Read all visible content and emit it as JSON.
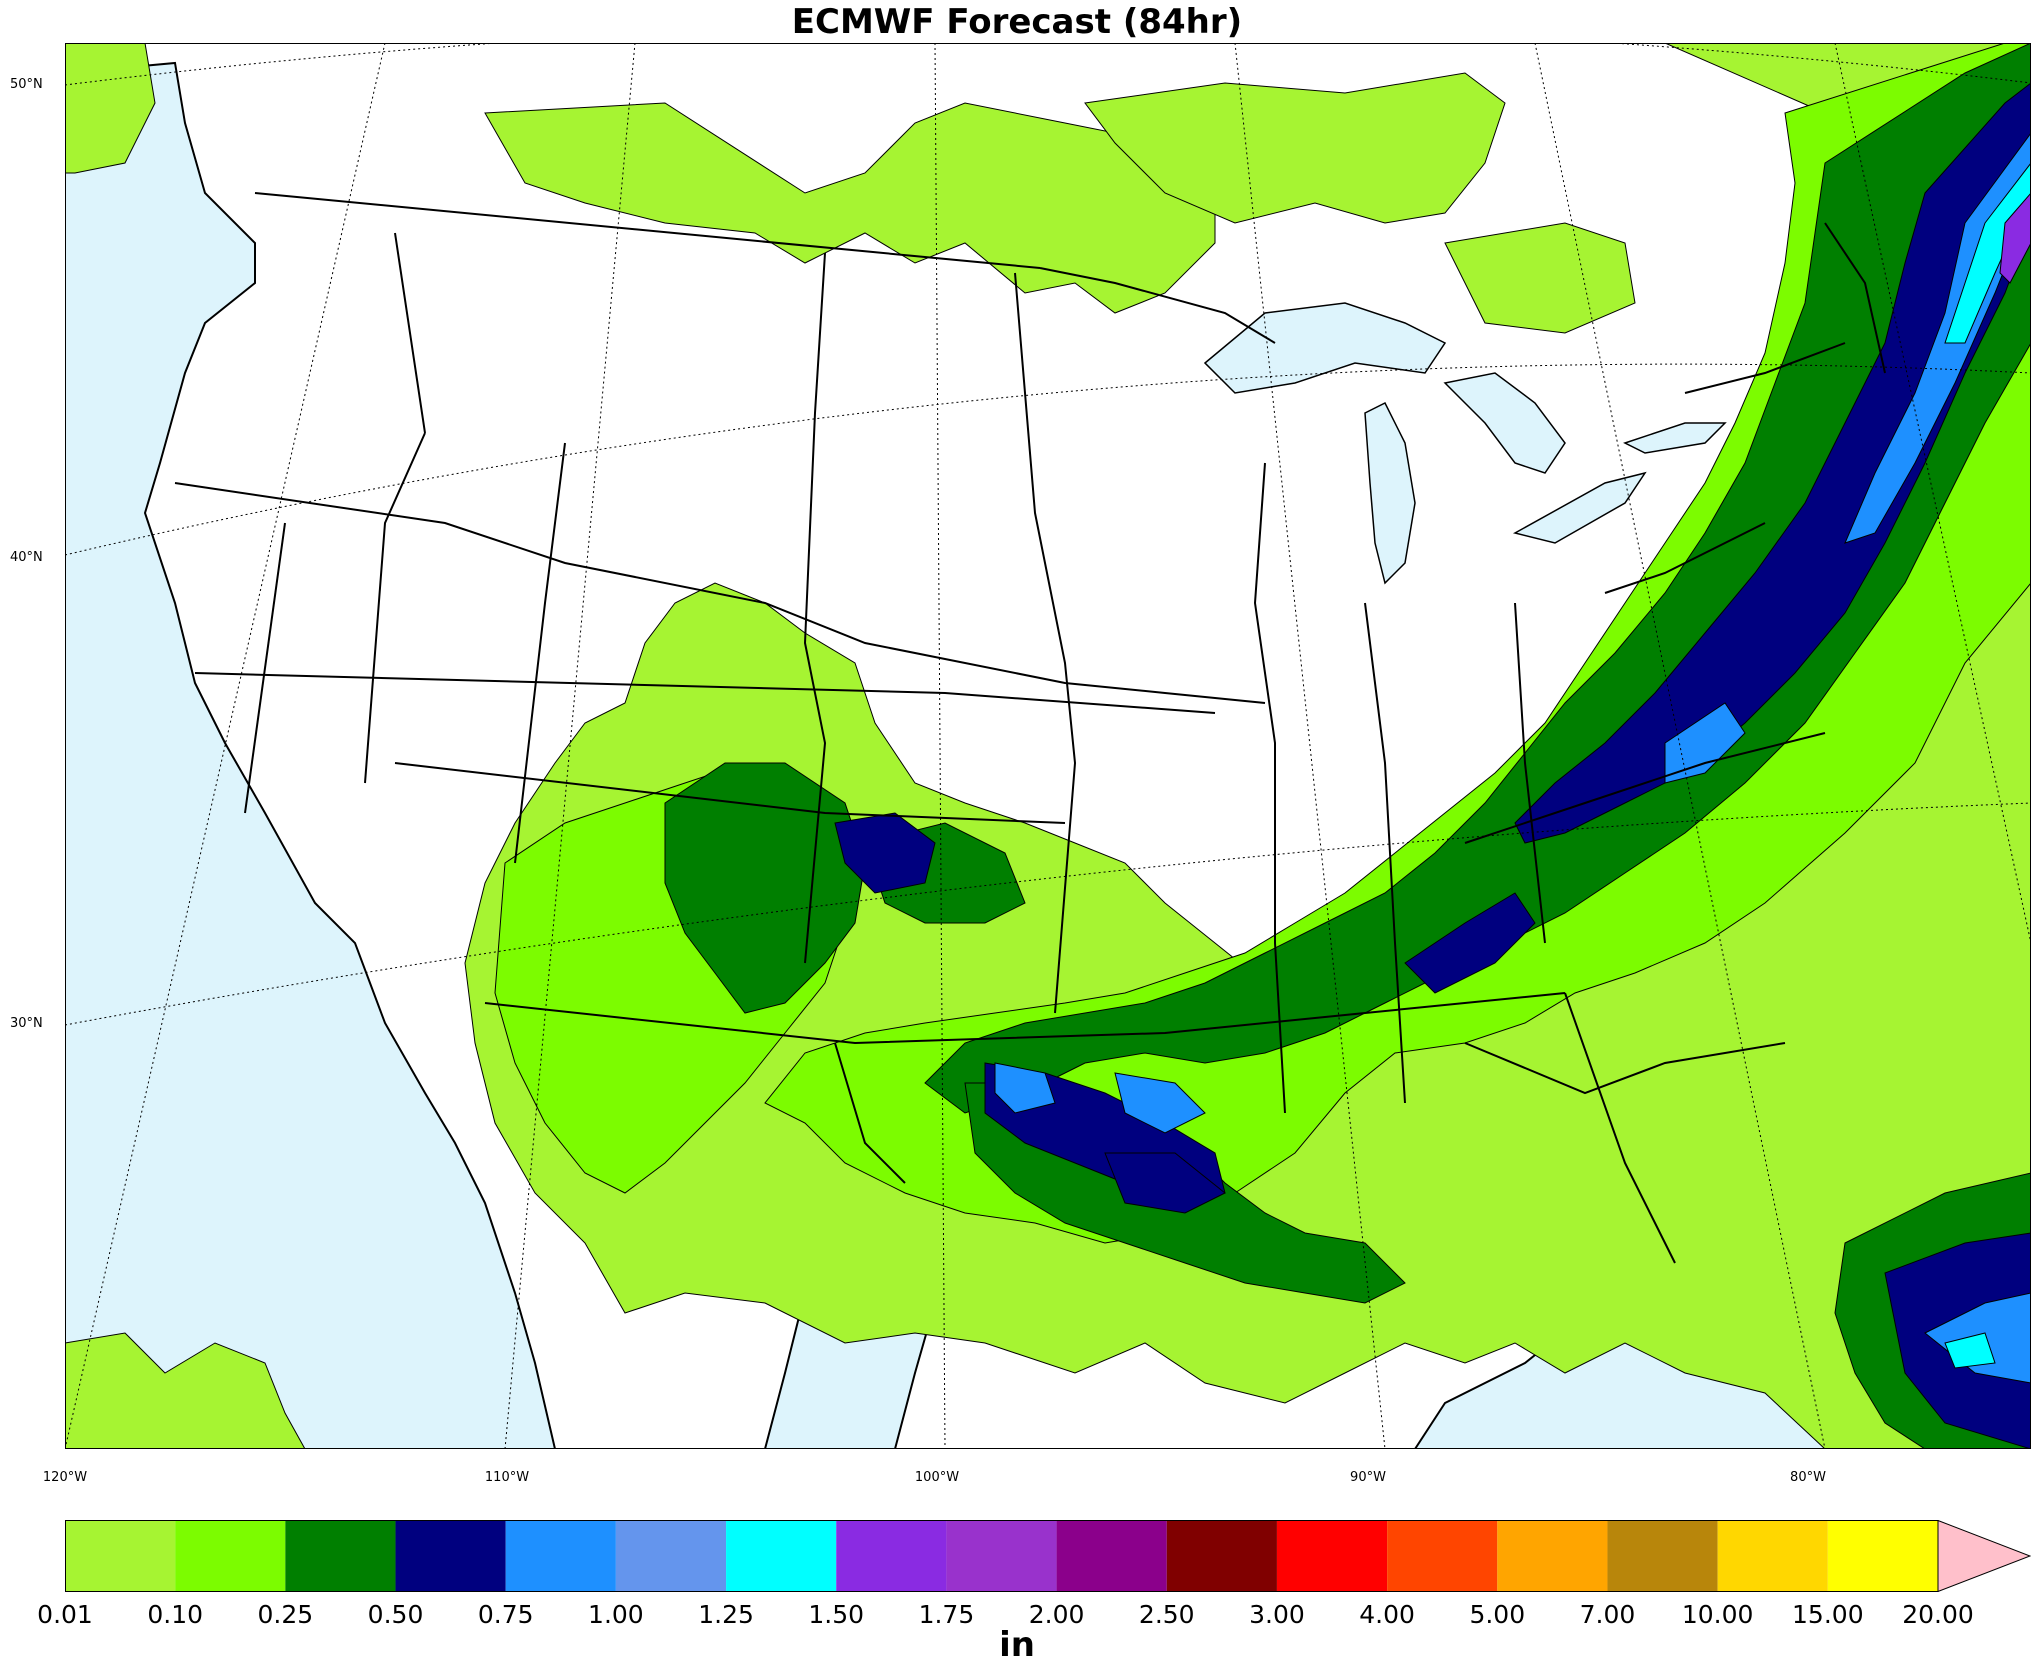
{
  "title": "ECMWF Forecast (84hr)",
  "lat_labels": [
    {
      "text": "50°N",
      "lat": 50
    },
    {
      "text": "40°N",
      "lat": 40
    },
    {
      "text": "30°N",
      "lat": 30
    }
  ],
  "lon_labels": [
    {
      "text": "120°W",
      "lon": -120
    },
    {
      "text": "110°W",
      "lon": -110
    },
    {
      "text": "100°W",
      "lon": -100
    },
    {
      "text": "90°W",
      "lon": -90
    },
    {
      "text": "80°W",
      "lon": -80
    }
  ],
  "colors": {
    "ocean": "#ddf4fc",
    "land": "#ffffff"
  },
  "colorbar": {
    "unit": "in",
    "bounds": [
      "0.01",
      "0.10",
      "0.25",
      "0.50",
      "0.75",
      "1.00",
      "1.25",
      "1.50",
      "1.75",
      "2.00",
      "2.50",
      "3.00",
      "4.00",
      "5.00",
      "7.00",
      "10.00",
      "15.00",
      "20.00"
    ],
    "colors": [
      "#a6f432",
      "#7cfc00",
      "#007f00",
      "#00007f",
      "#1e90ff",
      "#6495ed",
      "#00ffff",
      "#8a2be2",
      "#9932cc",
      "#8b008b",
      "#800000",
      "#ff0000",
      "#ff4500",
      "#ffa500",
      "#b8860b",
      "#ffd700",
      "#ffff00"
    ],
    "extend_color": "#ffc0cb"
  }
}
